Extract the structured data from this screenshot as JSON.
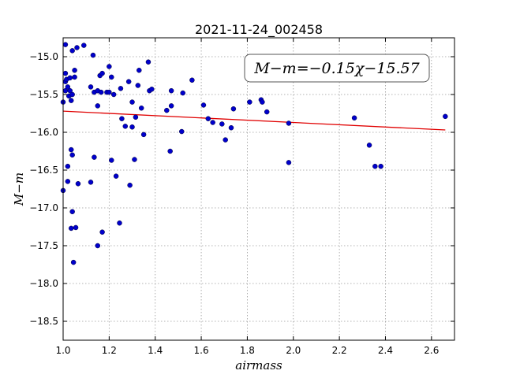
{
  "chart_data": {
    "type": "scatter",
    "title": "2021-11-24_002458",
    "xlabel": "airmass",
    "ylabel": "M−m",
    "annotation": "M−m=−0.15χ−15.57",
    "xlim": [
      1.0,
      2.7
    ],
    "ylim": [
      -18.75,
      -14.75
    ],
    "x_ticks": [
      1.0,
      1.2,
      1.4,
      1.6,
      1.8,
      2.0,
      2.2,
      2.4,
      2.6
    ],
    "x_tick_labels": [
      "1.0",
      "1.2",
      "1.4",
      "1.6",
      "1.8",
      "2.0",
      "2.2",
      "2.4",
      "2.6"
    ],
    "y_ticks": [
      -15.0,
      -15.5,
      -16.0,
      -16.5,
      -17.0,
      -17.5,
      -18.0,
      -18.5
    ],
    "y_tick_labels": [
      "−15.0",
      "−15.5",
      "−16.0",
      "−16.5",
      "−17.0",
      "−17.5",
      "−18.0",
      "−18.5"
    ],
    "grid": true,
    "point_color": "#0000cc",
    "fit_color": "#e00000",
    "fit": {
      "slope": -0.15,
      "intercept": -15.57,
      "x_range": [
        1.0,
        2.66
      ]
    },
    "points": [
      [
        1.0,
        -15.6
      ],
      [
        1.0,
        -16.77
      ],
      [
        1.01,
        -14.84
      ],
      [
        1.01,
        -15.22
      ],
      [
        1.01,
        -15.33
      ],
      [
        1.01,
        -15.45
      ],
      [
        1.015,
        -15.3
      ],
      [
        1.02,
        -15.4
      ],
      [
        1.02,
        -16.65
      ],
      [
        1.02,
        -16.45
      ],
      [
        1.025,
        -15.52
      ],
      [
        1.03,
        -15.28
      ],
      [
        1.03,
        -15.45
      ],
      [
        1.035,
        -15.58
      ],
      [
        1.035,
        -16.23
      ],
      [
        1.035,
        -17.27
      ],
      [
        1.04,
        -15.5
      ],
      [
        1.04,
        -14.92
      ],
      [
        1.04,
        -16.3
      ],
      [
        1.04,
        -17.05
      ],
      [
        1.045,
        -17.72
      ],
      [
        1.05,
        -15.18
      ],
      [
        1.05,
        -15.27
      ],
      [
        1.055,
        -17.26
      ],
      [
        1.06,
        -14.88
      ],
      [
        1.065,
        -16.68
      ],
      [
        1.09,
        -14.85
      ],
      [
        1.12,
        -16.66
      ],
      [
        1.12,
        -15.4
      ],
      [
        1.13,
        -14.98
      ],
      [
        1.135,
        -15.47
      ],
      [
        1.135,
        -16.33
      ],
      [
        1.15,
        -15.45
      ],
      [
        1.15,
        -15.65
      ],
      [
        1.15,
        -17.5
      ],
      [
        1.16,
        -15.25
      ],
      [
        1.165,
        -15.47
      ],
      [
        1.17,
        -15.22
      ],
      [
        1.17,
        -17.32
      ],
      [
        1.19,
        -15.47
      ],
      [
        1.2,
        -15.47
      ],
      [
        1.2,
        -15.13
      ],
      [
        1.21,
        -16.37
      ],
      [
        1.21,
        -15.27
      ],
      [
        1.22,
        -15.5
      ],
      [
        1.23,
        -16.58
      ],
      [
        1.245,
        -17.2
      ],
      [
        1.25,
        -15.42
      ],
      [
        1.255,
        -15.82
      ],
      [
        1.27,
        -15.92
      ],
      [
        1.285,
        -15.33
      ],
      [
        1.29,
        -16.7
      ],
      [
        1.3,
        -15.6
      ],
      [
        1.3,
        -15.93
      ],
      [
        1.31,
        -16.36
      ],
      [
        1.315,
        -15.8
      ],
      [
        1.325,
        -15.38
      ],
      [
        1.33,
        -15.18
      ],
      [
        1.34,
        -15.68
      ],
      [
        1.35,
        -16.03
      ],
      [
        1.37,
        -15.07
      ],
      [
        1.375,
        -15.45
      ],
      [
        1.385,
        -15.43
      ],
      [
        1.45,
        -15.71
      ],
      [
        1.465,
        -16.25
      ],
      [
        1.47,
        -15.45
      ],
      [
        1.47,
        -15.65
      ],
      [
        1.515,
        -15.99
      ],
      [
        1.52,
        -15.48
      ],
      [
        1.56,
        -15.31
      ],
      [
        1.61,
        -15.64
      ],
      [
        1.63,
        -15.82
      ],
      [
        1.65,
        -15.87
      ],
      [
        1.69,
        -15.89
      ],
      [
        1.705,
        -16.1
      ],
      [
        1.73,
        -15.94
      ],
      [
        1.74,
        -15.69
      ],
      [
        1.81,
        -15.6
      ],
      [
        1.86,
        -15.57
      ],
      [
        1.865,
        -15.6
      ],
      [
        1.885,
        -15.73
      ],
      [
        1.98,
        -15.88
      ],
      [
        1.98,
        -16.4
      ],
      [
        2.265,
        -15.81
      ],
      [
        2.33,
        -16.17
      ],
      [
        2.355,
        -16.45
      ],
      [
        2.38,
        -16.45
      ],
      [
        2.66,
        -15.79
      ]
    ]
  }
}
